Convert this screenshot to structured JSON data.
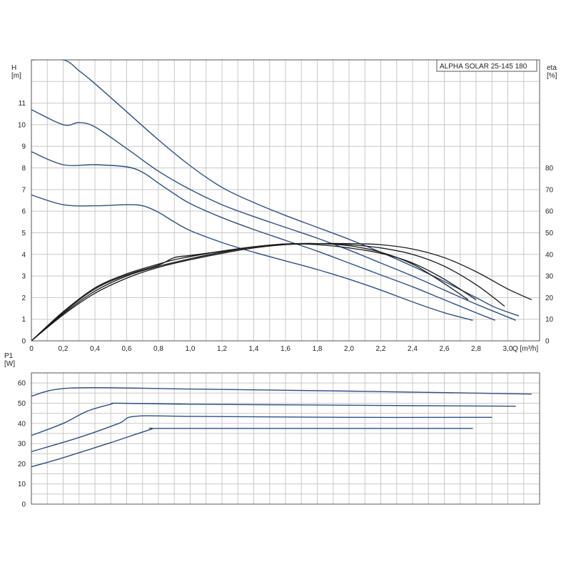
{
  "colors": {
    "head_curve": "#2b4f86",
    "eta_curve": "#1a1a1a",
    "power_curve": "#2b4f86",
    "grid": "#c8c8c8",
    "frame": "#555555"
  },
  "chart_data": [
    {
      "id": "head_efficiency",
      "type": "line",
      "title": "ALPHA SOLAR 25-145  180",
      "xlabel": "Q [m³/h]",
      "ylabel": "H\n[m]",
      "y2label": "eta\n[%]",
      "xlim": [
        0,
        3.2
      ],
      "ylim": [
        0,
        13
      ],
      "y2lim": [
        0,
        130
      ],
      "grid": true,
      "x_ticks": [
        "0",
        "0,2",
        "0,4",
        "0,6",
        "0,8",
        "1,0",
        "1,2",
        "1,4",
        "1,6",
        "1,8",
        "2,0",
        "2,2",
        "2,4",
        "2,6",
        "2,8",
        "3,0"
      ],
      "y_ticks": [
        "0",
        "1",
        "2",
        "3",
        "4",
        "5",
        "6",
        "7",
        "8",
        "9",
        "10",
        "11"
      ],
      "y2_ticks": [
        "0",
        "10",
        "20",
        "30",
        "40",
        "50",
        "60",
        "70",
        "80"
      ],
      "head_series": [
        {
          "x": [
            0,
            0.2,
            0.3,
            0.4,
            0.6,
            0.8,
            1.0,
            1.2,
            1.4,
            1.6,
            1.8,
            2.0,
            2.2,
            2.4,
            2.6,
            2.8,
            2.92,
            3.07
          ],
          "y": [
            13,
            13,
            12.5,
            11.9,
            10.6,
            9.3,
            8.1,
            7.1,
            6.4,
            5.8,
            5.25,
            4.7,
            4.1,
            3.45,
            2.75,
            2.0,
            1.55,
            1.15
          ]
        },
        {
          "x": [
            0,
            0.2,
            0.3,
            0.4,
            0.6,
            0.8,
            1.0,
            1.2,
            1.4,
            1.6,
            1.8,
            2.0,
            2.2,
            2.4,
            2.6,
            2.8,
            3.05
          ],
          "y": [
            10.7,
            10.0,
            10.1,
            9.9,
            8.9,
            7.85,
            7.0,
            6.3,
            5.75,
            5.25,
            4.75,
            4.2,
            3.6,
            3.0,
            2.35,
            1.7,
            0.95
          ]
        },
        {
          "x": [
            0,
            0.2,
            0.4,
            0.6,
            0.7,
            0.8,
            0.9,
            1.0,
            1.2,
            1.4,
            1.6,
            1.8,
            2.0,
            2.2,
            2.4,
            2.6,
            2.8,
            2.92
          ],
          "y": [
            8.75,
            8.15,
            8.15,
            8.05,
            7.8,
            7.3,
            6.8,
            6.35,
            5.7,
            5.15,
            4.65,
            4.15,
            3.6,
            3.05,
            2.5,
            1.9,
            1.3,
            0.95
          ]
        },
        {
          "x": [
            0,
            0.2,
            0.4,
            0.6,
            0.7,
            0.8,
            0.9,
            1.0,
            1.2,
            1.4,
            1.6,
            1.8,
            2.0,
            2.2,
            2.4,
            2.6,
            2.78
          ],
          "y": [
            6.75,
            6.3,
            6.25,
            6.3,
            6.25,
            5.95,
            5.5,
            5.1,
            4.55,
            4.1,
            3.7,
            3.3,
            2.85,
            2.35,
            1.8,
            1.3,
            0.95
          ]
        }
      ],
      "eta_series": [
        {
          "x": [
            0,
            0.2,
            0.4,
            0.6,
            0.8,
            1.0,
            1.2,
            1.4,
            1.6,
            1.8,
            2.0,
            2.2,
            2.4,
            2.6,
            2.8,
            3.0,
            3.15
          ],
          "y": [
            0,
            12,
            22,
            29,
            34,
            37.5,
            40.5,
            43,
            44.5,
            45,
            45,
            44.5,
            42.5,
            38.5,
            32,
            24,
            19
          ]
        },
        {
          "x": [
            0,
            0.2,
            0.4,
            0.6,
            0.8,
            1.0,
            1.2,
            1.4,
            1.6,
            1.8,
            2.0,
            2.2,
            2.4,
            2.6,
            2.8,
            2.98
          ],
          "y": [
            0,
            12.5,
            23,
            30,
            34.5,
            38,
            41,
            43.5,
            44.8,
            45,
            44.5,
            43,
            40,
            34.5,
            26,
            16
          ]
        },
        {
          "x": [
            0,
            0.2,
            0.4,
            0.6,
            0.8,
            0.9,
            1.0,
            1.2,
            1.4,
            1.6,
            1.8,
            2.0,
            2.2,
            2.4,
            2.6,
            2.8
          ],
          "y": [
            0,
            13,
            24,
            30.5,
            35,
            38.5,
            39.5,
            41.5,
            43.5,
            44.8,
            44.5,
            43,
            40.5,
            36,
            28.5,
            19
          ]
        },
        {
          "x": [
            0,
            0.2,
            0.4,
            0.6,
            0.8,
            0.9,
            1.0,
            1.2,
            1.4,
            1.6,
            1.8,
            2.0,
            2.2,
            2.4,
            2.6,
            2.75
          ],
          "y": [
            0,
            13.5,
            24.5,
            31,
            35.5,
            37.5,
            39,
            41.5,
            43.5,
            44.8,
            45,
            44,
            41,
            35.5,
            26.5,
            19
          ]
        }
      ]
    },
    {
      "id": "power_input",
      "type": "line",
      "xlabel": "",
      "ylabel": "P1\n[W]",
      "xlim": [
        0,
        3.2
      ],
      "ylim": [
        0,
        65
      ],
      "grid": true,
      "y_ticks": [
        "0",
        "10",
        "20",
        "30",
        "40",
        "50",
        "60"
      ],
      "power_series": [
        {
          "x": [
            0,
            0.25,
            1.0,
            2.0,
            3.15
          ],
          "y": [
            53.5,
            57.5,
            57.0,
            56.0,
            54.5
          ]
        },
        {
          "x": [
            0,
            0.2,
            0.35,
            0.5,
            0.55,
            1.0,
            2.0,
            3.05
          ],
          "y": [
            34,
            40,
            46,
            49.5,
            50,
            49.5,
            49,
            48.5
          ]
        },
        {
          "x": [
            0,
            0.3,
            0.55,
            0.65,
            1.0,
            2.0,
            2.9
          ],
          "y": [
            26,
            33,
            40,
            43.5,
            43.5,
            43,
            43
          ]
        },
        {
          "x": [
            0,
            0.2,
            0.5,
            0.75,
            0.8,
            1.5,
            2.78
          ],
          "y": [
            18.5,
            23,
            30.5,
            37,
            37.5,
            37.5,
            37.5
          ]
        }
      ]
    }
  ]
}
